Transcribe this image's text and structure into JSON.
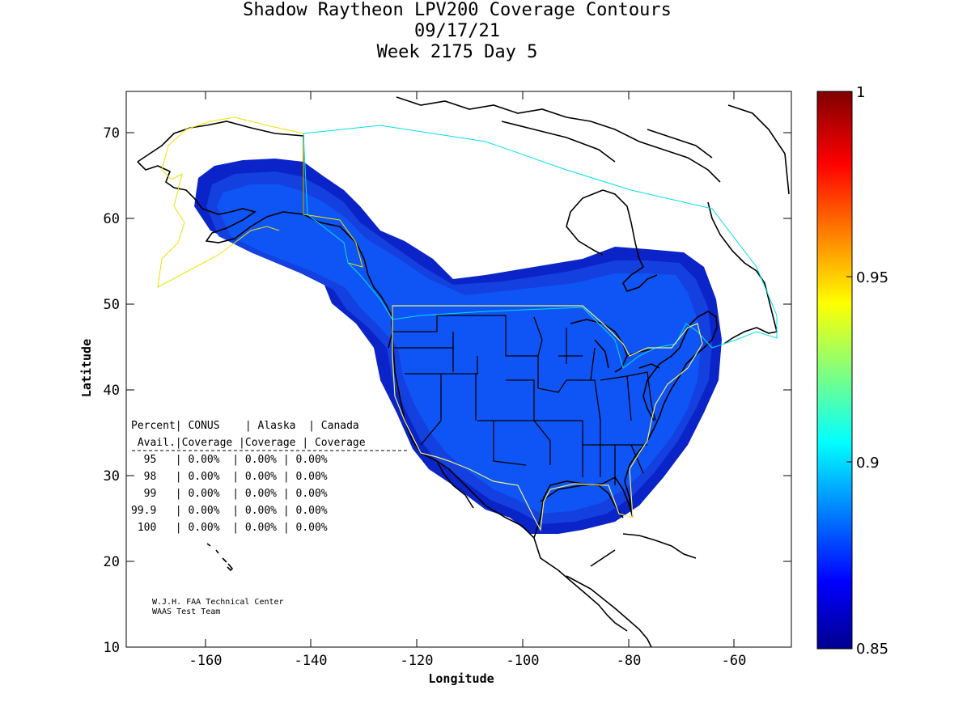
{
  "title": {
    "line1": "Shadow Raytheon LPV200 Coverage Contours",
    "line2": "09/17/21",
    "line3": "Week 2175 Day 5"
  },
  "axes": {
    "xlabel": "Longitude",
    "ylabel": "Latitude",
    "xticks": [
      "-160",
      "-140",
      "-120",
      "-100",
      "-80",
      "-60"
    ],
    "yticks": [
      "10",
      "20",
      "30",
      "40",
      "50",
      "60",
      "70"
    ]
  },
  "colorbar": {
    "ticks": [
      "0.85",
      "0.9",
      "0.95",
      "1"
    ],
    "min": 0.85,
    "max": 1
  },
  "table": {
    "header1": "Percent| CONUS    | Alaska  | Canada",
    "header2": " Avail.|Coverage |Coverage | Coverage",
    "rows": [
      "  95   | 0.00%  | 0.00% | 0.00%",
      "  98   | 0.00%  | 0.00% | 0.00%",
      "  99   | 0.00%  | 0.00% | 0.00%",
      "99.9   | 0.00%  | 0.00% | 0.00%",
      " 100   | 0.00%  | 0.00% | 0.00%"
    ]
  },
  "credit": {
    "line1": "W.J.H. FAA Technical Center",
    "line2": "WAAS Test Team"
  },
  "colors": {
    "coverage_outer": "#0a24c8",
    "coverage_mid": "#1440e0",
    "coverage_inner": "#0f55f5",
    "conus_boundary": "#f0f078",
    "canada_boundary": "#00e0e8",
    "alaska_boundary": "#f0e000",
    "coastline": "#000000"
  }
}
